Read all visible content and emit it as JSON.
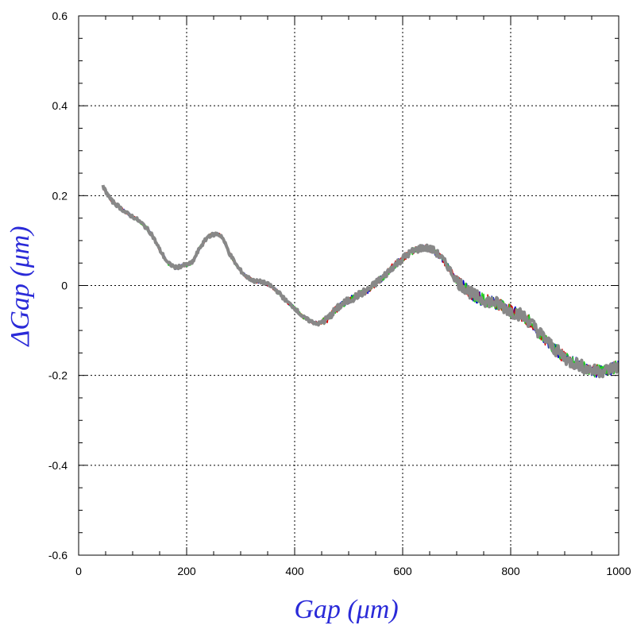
{
  "chart_data": {
    "type": "line",
    "xlabel": "Gap (μm)",
    "ylabel": "ΔGap (μm)",
    "xlim": [
      0,
      1000
    ],
    "ylim": [
      -0.6,
      0.6
    ],
    "x_ticks": [
      0,
      200,
      400,
      600,
      800,
      1000
    ],
    "x_tick_labels": [
      "0",
      "200",
      "400",
      "600",
      "800",
      "1000"
    ],
    "y_ticks": [
      -0.6,
      -0.4,
      -0.2,
      0,
      0.2,
      0.4,
      0.6
    ],
    "y_tick_labels": [
      "-0.6",
      "-0.4",
      "-0.2",
      "0",
      "0.2",
      "0.4",
      "0.6"
    ],
    "grid": true,
    "series_colors": [
      "#0000cc",
      "#dd0000",
      "#22cc22",
      "#888888"
    ],
    "x": [
      45,
      60,
      75,
      90,
      105,
      120,
      135,
      150,
      165,
      180,
      195,
      210,
      225,
      240,
      255,
      265,
      280,
      295,
      310,
      325,
      340,
      355,
      370,
      385,
      400,
      415,
      430,
      445,
      460,
      475,
      490,
      505,
      520,
      535,
      550,
      565,
      580,
      595,
      610,
      625,
      640,
      655,
      670,
      685,
      700,
      715,
      730,
      745,
      760,
      775,
      790,
      805,
      820,
      835,
      850,
      865,
      880,
      895,
      910,
      925,
      940,
      955,
      970,
      985,
      1000
    ],
    "y": [
      0.22,
      0.19,
      0.175,
      0.16,
      0.15,
      0.135,
      0.115,
      0.08,
      0.05,
      0.04,
      0.045,
      0.05,
      0.085,
      0.11,
      0.115,
      0.11,
      0.07,
      0.04,
      0.02,
      0.01,
      0.008,
      0.0,
      -0.015,
      -0.035,
      -0.05,
      -0.07,
      -0.08,
      -0.085,
      -0.075,
      -0.055,
      -0.04,
      -0.03,
      -0.02,
      -0.01,
      0.005,
      0.02,
      0.04,
      0.055,
      0.07,
      0.08,
      0.085,
      0.08,
      0.065,
      0.04,
      0.01,
      -0.005,
      -0.02,
      -0.03,
      -0.035,
      -0.04,
      -0.05,
      -0.06,
      -0.065,
      -0.08,
      -0.1,
      -0.12,
      -0.14,
      -0.155,
      -0.17,
      -0.175,
      -0.185,
      -0.19,
      -0.19,
      -0.185,
      -0.18
    ]
  }
}
